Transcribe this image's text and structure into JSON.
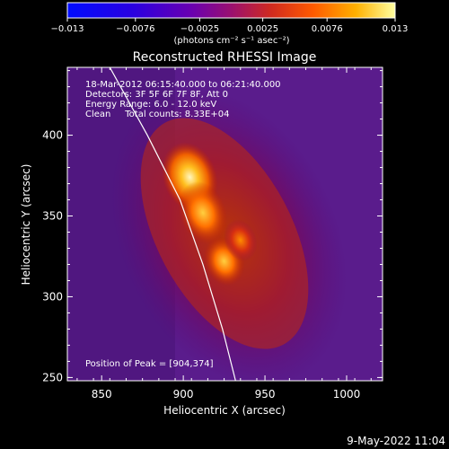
{
  "chart_data": {
    "type": "heatmap",
    "title": "Reconstructed RHESSI Image",
    "xlabel": "Heliocentric X (arcsec)",
    "ylabel": "Heliocentric Y (arcsec)",
    "xlim": [
      829,
      1022
    ],
    "ylim": [
      248,
      442
    ],
    "x_ticks": [
      850,
      900,
      950,
      1000
    ],
    "y_ticks": [
      250,
      300,
      350,
      400
    ],
    "colorbar": {
      "range": [
        -0.013,
        0.013
      ],
      "tick_values": [
        -0.013,
        -0.0076,
        -0.0025,
        0.0025,
        0.0076,
        0.013
      ],
      "tick_labels": [
        "−0.013",
        "−0.0076",
        "−0.0025",
        "0.0025",
        "0.0076",
        "0.013"
      ],
      "unit_label": "(photons cm⁻² s⁻¹ asec⁻²)"
    },
    "annotations": {
      "time_range": "18-Mar-2012 06:15:40.000 to 06:21:40.000",
      "detectors": "Detectors: 3F 5F 6F 7F 8F, Att 0",
      "energy_range": "Energy Range: 6.0 - 12.0 keV",
      "method": "Clean     Total counts: 8.33E+04",
      "peak": "Position of Peak = [904,374]"
    },
    "peak_position": [
      904,
      374
    ],
    "sources": [
      {
        "x": 904,
        "y": 374,
        "peak": 0.013
      },
      {
        "x": 912,
        "y": 352,
        "peak": 0.0105
      },
      {
        "x": 925,
        "y": 322,
        "peak": 0.009
      },
      {
        "x": 935,
        "y": 335,
        "peak": 0.006
      }
    ],
    "limb_curve": [
      [
        855,
        442
      ],
      [
        878,
        400
      ],
      [
        898,
        360
      ],
      [
        912,
        320
      ],
      [
        924,
        280
      ],
      [
        932,
        248
      ]
    ],
    "footer": "9-May-2022 11:04"
  }
}
